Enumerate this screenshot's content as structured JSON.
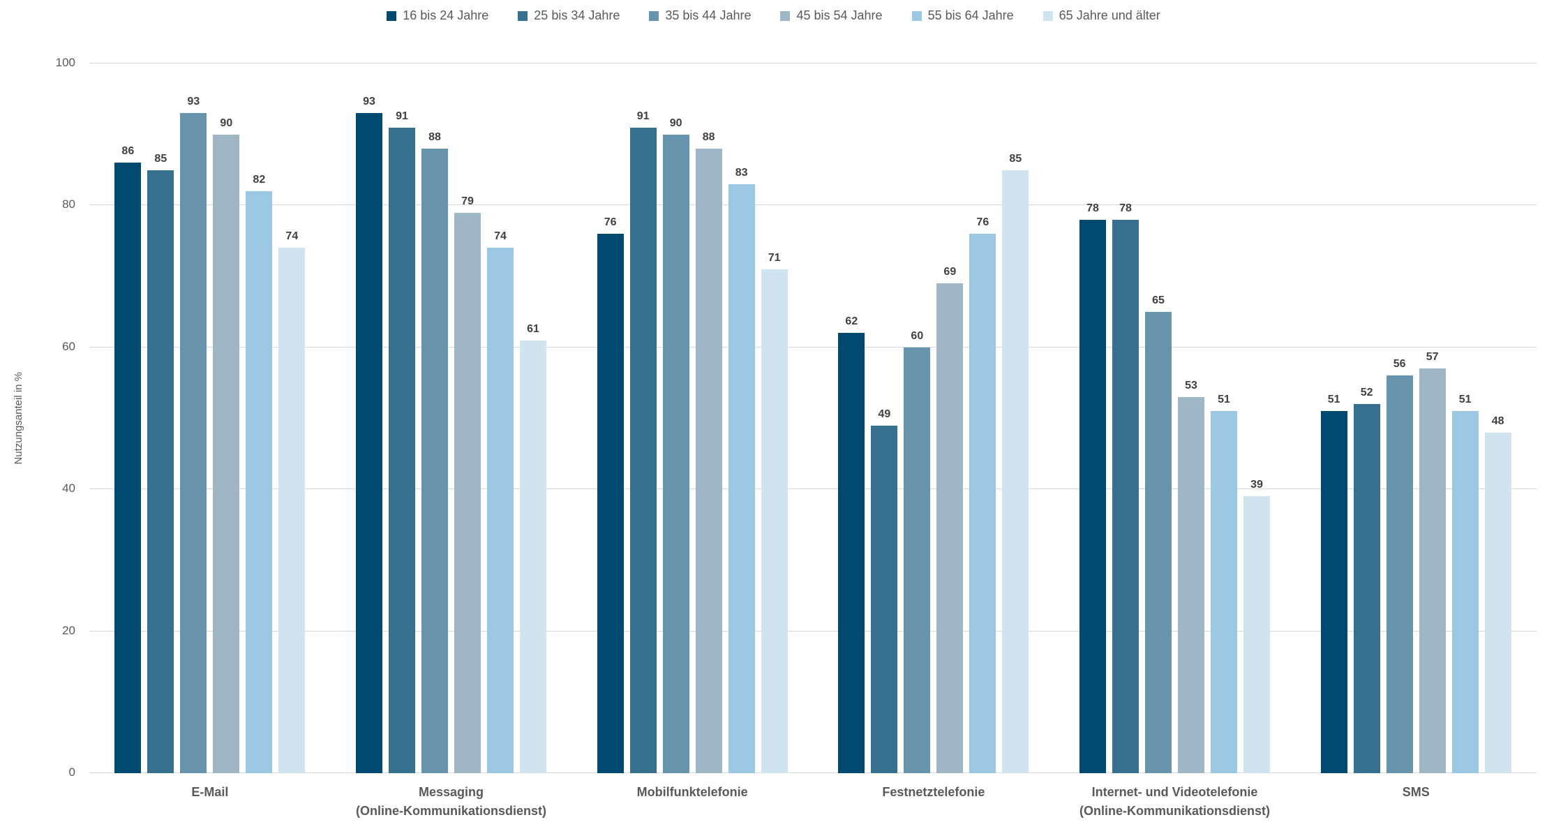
{
  "chart_data": {
    "type": "bar",
    "title": "",
    "xlabel": "",
    "ylabel": "Nutzungsanteil in %",
    "ylim": [
      0,
      100
    ],
    "yticks": [
      0,
      20,
      40,
      60,
      80,
      100
    ],
    "grid": true,
    "legend_position": "top",
    "categories": [
      {
        "label": "E-Mail",
        "sublabel": ""
      },
      {
        "label": "Messaging",
        "sublabel": "(Online-Kommunikationsdienst)"
      },
      {
        "label": "Mobilfunktelefonie",
        "sublabel": ""
      },
      {
        "label": "Festnetztelefonie",
        "sublabel": ""
      },
      {
        "label": "Internet- und Videotelefonie",
        "sublabel": "(Online-Kommunikationsdienst)"
      },
      {
        "label": "SMS",
        "sublabel": ""
      }
    ],
    "series": [
      {
        "name": "16 bis 24 Jahre",
        "color": "#004a72",
        "values": [
          86,
          93,
          76,
          62,
          78,
          51
        ]
      },
      {
        "name": "25 bis 34 Jahre",
        "color": "#35708f",
        "values": [
          85,
          91,
          91,
          49,
          78,
          52
        ]
      },
      {
        "name": "35 bis 44 Jahre",
        "color": "#6794ad",
        "values": [
          93,
          88,
          90,
          60,
          65,
          56
        ]
      },
      {
        "name": "45 bis 54 Jahre",
        "color": "#9fb6c6",
        "values": [
          90,
          79,
          88,
          69,
          53,
          57
        ]
      },
      {
        "name": "55 bis 64 Jahre",
        "color": "#9ac8e3",
        "values": [
          82,
          74,
          83,
          76,
          51,
          51
        ]
      },
      {
        "name": "65 Jahre und älter",
        "color": "#d0e4f0",
        "values": [
          74,
          61,
          71,
          85,
          39,
          48
        ]
      }
    ],
    "colors": {
      "axis_text": "#595959",
      "value_label": "#404040",
      "gridline": "#d9d9d9",
      "background": "#ffffff"
    }
  }
}
